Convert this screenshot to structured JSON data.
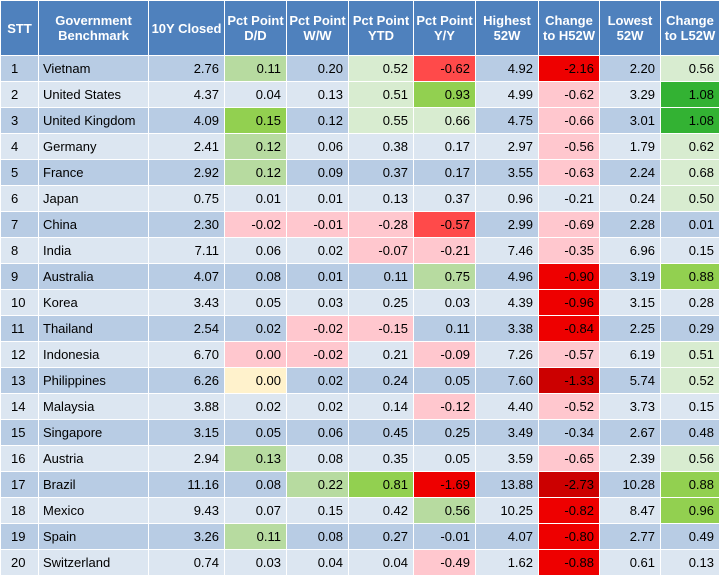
{
  "headers": [
    "STT",
    "Government Benchmark",
    "10Y Closed",
    "Pct Point D/D",
    "Pct Point W/W",
    "Pct Point YTD",
    "Pct Point Y/Y",
    "Highest 52W",
    "Change to H52W",
    "Lowest 52W",
    "Change to L52W"
  ],
  "colors": {
    "header_bg": "#4f81bd",
    "row_dark": "#b8cce4",
    "row_light": "#dce6f1",
    "green_light": "#d8ecd0",
    "green_mid": "#b7dba0",
    "green_strong": "#92d050",
    "green_vivid": "#33b233",
    "red_light": "#ffc7ce",
    "red_mid": "#ff9e9e",
    "red_strong": "#ff4a4a",
    "red_vivid": "#ee0000",
    "red_dark": "#cc0000",
    "yellow_light": "#fff2cc"
  },
  "rows": [
    {
      "stt": "1",
      "name": "Vietnam",
      "closed": "2.76",
      "dd": "0.11",
      "ww": "0.20",
      "ytd": "0.52",
      "yy": "-0.62",
      "h52": "4.92",
      "ch52": "-2.16",
      "l52": "2.20",
      "cl52": "0.56"
    },
    {
      "stt": "2",
      "name": "United States",
      "closed": "4.37",
      "dd": "0.04",
      "ww": "0.13",
      "ytd": "0.51",
      "yy": "0.93",
      "h52": "4.99",
      "ch52": "-0.62",
      "l52": "3.29",
      "cl52": "1.08"
    },
    {
      "stt": "3",
      "name": "United Kingdom",
      "closed": "4.09",
      "dd": "0.15",
      "ww": "0.12",
      "ytd": "0.55",
      "yy": "0.66",
      "h52": "4.75",
      "ch52": "-0.66",
      "l52": "3.01",
      "cl52": "1.08"
    },
    {
      "stt": "4",
      "name": "Germany",
      "closed": "2.41",
      "dd": "0.12",
      "ww": "0.06",
      "ytd": "0.38",
      "yy": "0.17",
      "h52": "2.97",
      "ch52": "-0.56",
      "l52": "1.79",
      "cl52": "0.62"
    },
    {
      "stt": "5",
      "name": "France",
      "closed": "2.92",
      "dd": "0.12",
      "ww": "0.09",
      "ytd": "0.37",
      "yy": "0.17",
      "h52": "3.55",
      "ch52": "-0.63",
      "l52": "2.24",
      "cl52": "0.68"
    },
    {
      "stt": "6",
      "name": "Japan",
      "closed": "0.75",
      "dd": "0.01",
      "ww": "0.01",
      "ytd": "0.13",
      "yy": "0.37",
      "h52": "0.96",
      "ch52": "-0.21",
      "l52": "0.24",
      "cl52": "0.50"
    },
    {
      "stt": "7",
      "name": "China",
      "closed": "2.30",
      "dd": "-0.02",
      "ww": "-0.01",
      "ytd": "-0.28",
      "yy": "-0.57",
      "h52": "2.99",
      "ch52": "-0.69",
      "l52": "2.28",
      "cl52": "0.01"
    },
    {
      "stt": "8",
      "name": "India",
      "closed": "7.11",
      "dd": "0.06",
      "ww": "0.02",
      "ytd": "-0.07",
      "yy": "-0.21",
      "h52": "7.46",
      "ch52": "-0.35",
      "l52": "6.96",
      "cl52": "0.15"
    },
    {
      "stt": "9",
      "name": "Australia",
      "closed": "4.07",
      "dd": "0.08",
      "ww": "0.01",
      "ytd": "0.11",
      "yy": "0.75",
      "h52": "4.96",
      "ch52": "-0.90",
      "l52": "3.19",
      "cl52": "0.88"
    },
    {
      "stt": "10",
      "name": "Korea",
      "closed": "3.43",
      "dd": "0.05",
      "ww": "0.03",
      "ytd": "0.25",
      "yy": "0.03",
      "h52": "4.39",
      "ch52": "-0.96",
      "l52": "3.15",
      "cl52": "0.28"
    },
    {
      "stt": "11",
      "name": "Thailand",
      "closed": "2.54",
      "dd": "0.02",
      "ww": "-0.02",
      "ytd": "-0.15",
      "yy": "0.11",
      "h52": "3.38",
      "ch52": "-0.84",
      "l52": "2.25",
      "cl52": "0.29"
    },
    {
      "stt": "12",
      "name": "Indonesia",
      "closed": "6.70",
      "dd": "0.00",
      "ww": "-0.02",
      "ytd": "0.21",
      "yy": "-0.09",
      "h52": "7.26",
      "ch52": "-0.57",
      "l52": "6.19",
      "cl52": "0.51"
    },
    {
      "stt": "13",
      "name": "Philippines",
      "closed": "6.26",
      "dd": "0.00",
      "ww": "0.02",
      "ytd": "0.24",
      "yy": "0.05",
      "h52": "7.60",
      "ch52": "-1.33",
      "l52": "5.74",
      "cl52": "0.52"
    },
    {
      "stt": "14",
      "name": "Malaysia",
      "closed": "3.88",
      "dd": "0.02",
      "ww": "0.02",
      "ytd": "0.14",
      "yy": "-0.12",
      "h52": "4.40",
      "ch52": "-0.52",
      "l52": "3.73",
      "cl52": "0.15"
    },
    {
      "stt": "15",
      "name": "Singapore",
      "closed": "3.15",
      "dd": "0.05",
      "ww": "0.06",
      "ytd": "0.45",
      "yy": "0.25",
      "h52": "3.49",
      "ch52": "-0.34",
      "l52": "2.67",
      "cl52": "0.48"
    },
    {
      "stt": "16",
      "name": "Austria",
      "closed": "2.94",
      "dd": "0.13",
      "ww": "0.08",
      "ytd": "0.35",
      "yy": "0.05",
      "h52": "3.59",
      "ch52": "-0.65",
      "l52": "2.39",
      "cl52": "0.56"
    },
    {
      "stt": "17",
      "name": "Brazil",
      "closed": "11.16",
      "dd": "0.08",
      "ww": "0.22",
      "ytd": "0.81",
      "yy": "-1.69",
      "h52": "13.88",
      "ch52": "-2.73",
      "l52": "10.28",
      "cl52": "0.88"
    },
    {
      "stt": "18",
      "name": "Mexico",
      "closed": "9.43",
      "dd": "0.07",
      "ww": "0.15",
      "ytd": "0.42",
      "yy": "0.56",
      "h52": "10.25",
      "ch52": "-0.82",
      "l52": "8.47",
      "cl52": "0.96"
    },
    {
      "stt": "19",
      "name": "Spain",
      "closed": "3.26",
      "dd": "0.11",
      "ww": "0.08",
      "ytd": "0.27",
      "yy": "-0.01",
      "h52": "4.07",
      "ch52": "-0.80",
      "l52": "2.77",
      "cl52": "0.49"
    },
    {
      "stt": "20",
      "name": "Switzerland",
      "closed": "0.74",
      "dd": "0.03",
      "ww": "0.04",
      "ytd": "0.04",
      "yy": "-0.49",
      "h52": "1.62",
      "ch52": "-0.88",
      "l52": "0.61",
      "cl52": "0.13"
    }
  ],
  "cell_colors": [
    {
      "dd": "green_mid",
      "ww": "",
      "ytd": "green_light",
      "yy": "red_strong",
      "ch52": "red_vivid",
      "cl52": "green_light"
    },
    {
      "dd": "",
      "ww": "",
      "ytd": "green_light",
      "yy": "green_strong",
      "ch52": "red_light",
      "cl52": "green_vivid"
    },
    {
      "dd": "green_strong",
      "ww": "",
      "ytd": "green_light",
      "yy": "green_light",
      "ch52": "red_light",
      "cl52": "green_vivid"
    },
    {
      "dd": "green_mid",
      "ww": "",
      "ytd": "",
      "yy": "",
      "ch52": "red_light",
      "cl52": "green_light"
    },
    {
      "dd": "green_mid",
      "ww": "",
      "ytd": "",
      "yy": "",
      "ch52": "red_light",
      "cl52": "green_light"
    },
    {
      "dd": "",
      "ww": "",
      "ytd": "",
      "yy": "",
      "ch52": "",
      "cl52": "green_light"
    },
    {
      "dd": "red_light",
      "ww": "red_light",
      "ytd": "red_light",
      "yy": "red_strong",
      "ch52": "red_light",
      "cl52": ""
    },
    {
      "dd": "",
      "ww": "",
      "ytd": "red_light",
      "yy": "red_light",
      "ch52": "red_light",
      "cl52": ""
    },
    {
      "dd": "",
      "ww": "",
      "ytd": "",
      "yy": "green_mid",
      "ch52": "red_vivid",
      "cl52": "green_strong"
    },
    {
      "dd": "",
      "ww": "",
      "ytd": "",
      "yy": "",
      "ch52": "red_vivid",
      "cl52": ""
    },
    {
      "dd": "",
      "ww": "red_light",
      "ytd": "red_light",
      "yy": "",
      "ch52": "red_vivid",
      "cl52": ""
    },
    {
      "dd": "red_light",
      "ww": "red_light",
      "ytd": "",
      "yy": "red_light",
      "ch52": "red_light",
      "cl52": "green_light"
    },
    {
      "dd": "yellow_light",
      "ww": "",
      "ytd": "",
      "yy": "",
      "ch52": "red_dark",
      "cl52": "green_light"
    },
    {
      "dd": "",
      "ww": "",
      "ytd": "",
      "yy": "red_light",
      "ch52": "red_light",
      "cl52": ""
    },
    {
      "dd": "",
      "ww": "",
      "ytd": "",
      "yy": "",
      "ch52": "",
      "cl52": ""
    },
    {
      "dd": "green_mid",
      "ww": "",
      "ytd": "",
      "yy": "",
      "ch52": "red_light",
      "cl52": "green_light"
    },
    {
      "dd": "",
      "ww": "green_mid",
      "ytd": "green_strong",
      "yy": "red_vivid",
      "ch52": "red_dark",
      "cl52": "green_strong"
    },
    {
      "dd": "",
      "ww": "",
      "ytd": "",
      "yy": "green_mid",
      "ch52": "red_vivid",
      "cl52": "green_strong"
    },
    {
      "dd": "green_mid",
      "ww": "",
      "ytd": "",
      "yy": "",
      "ch52": "red_vivid",
      "cl52": ""
    },
    {
      "dd": "",
      "ww": "",
      "ytd": "",
      "yy": "red_light",
      "ch52": "red_vivid",
      "cl52": ""
    }
  ]
}
